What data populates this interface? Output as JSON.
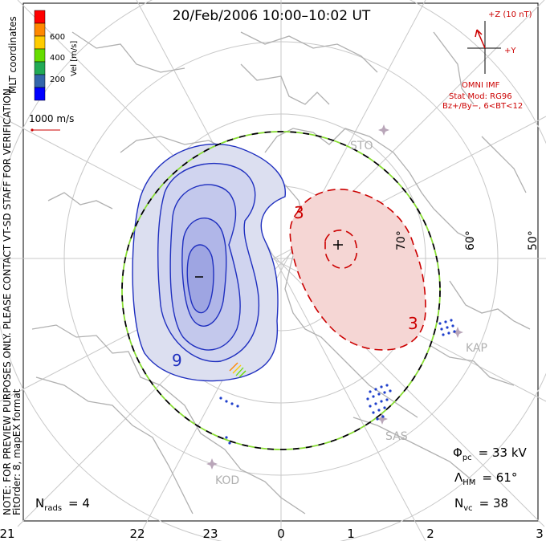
{
  "title": "20/Feb/2006  10:00–10:02 UT",
  "colorbar": {
    "label": "Vel [m/s]",
    "ticks": [
      "600",
      "400",
      "200"
    ],
    "colors": [
      "#ff0000",
      "#ff8800",
      "#ffcc00",
      "#66dd00",
      "#22aa55",
      "#3366aa",
      "#0000ff"
    ]
  },
  "reference_vector_label": "1000 m/s",
  "side_text": {
    "coords": "MLT coordinates",
    "note": "NOTE: FOR PREVIEW PURPOSES ONLY. PLEASE CONTACT VT-SD STAFF FOR VERIFICATION.",
    "fit": "FitOrder: 8,  mapEX format"
  },
  "imf": {
    "z_label": "+Z (10 nT)",
    "y_label": "+Y",
    "source": "OMNI IMF",
    "model": "Stat Mod: RG96",
    "condition": "Bz+/By−, 6<BT<12"
  },
  "latitude_labels": [
    "70°",
    "60°",
    "50°"
  ],
  "stations": [
    "STO",
    "KAP",
    "SAS",
    "KOD"
  ],
  "contour_labels": {
    "neg": "9",
    "pos": "3",
    "pos2": "3"
  },
  "stats": {
    "phi_pc": {
      "sym": "Φ",
      "sub": "pc",
      "value": "= 33 kV"
    },
    "lambda_hm": {
      "sym": "Λ",
      "sub": "HM",
      "value": "= 61°"
    },
    "n_vc": {
      "sym": "N",
      "sub": "vc",
      "value": "= 38"
    },
    "n_rads": {
      "sym": "N",
      "sub": "rads",
      "value": "= 4"
    }
  },
  "mlt_labels": [
    "21",
    "22",
    "23",
    "0",
    "1",
    "2",
    "3"
  ],
  "colors": {
    "neg_fill_outer": "#dcdff0",
    "neg_fill_mid": "#c6cbec",
    "neg_fill_inner": "#aab0e6",
    "neg_line": "#1f2fbf",
    "pos_fill": "#f5d6d4",
    "pos_line": "#cc0000",
    "coast": "#b0b0b0",
    "hmb_dash_a": "#000000",
    "hmb_dash_b": "#88dd33",
    "station": "#b9a6b9",
    "vector_dots": "#1f3fcc"
  }
}
